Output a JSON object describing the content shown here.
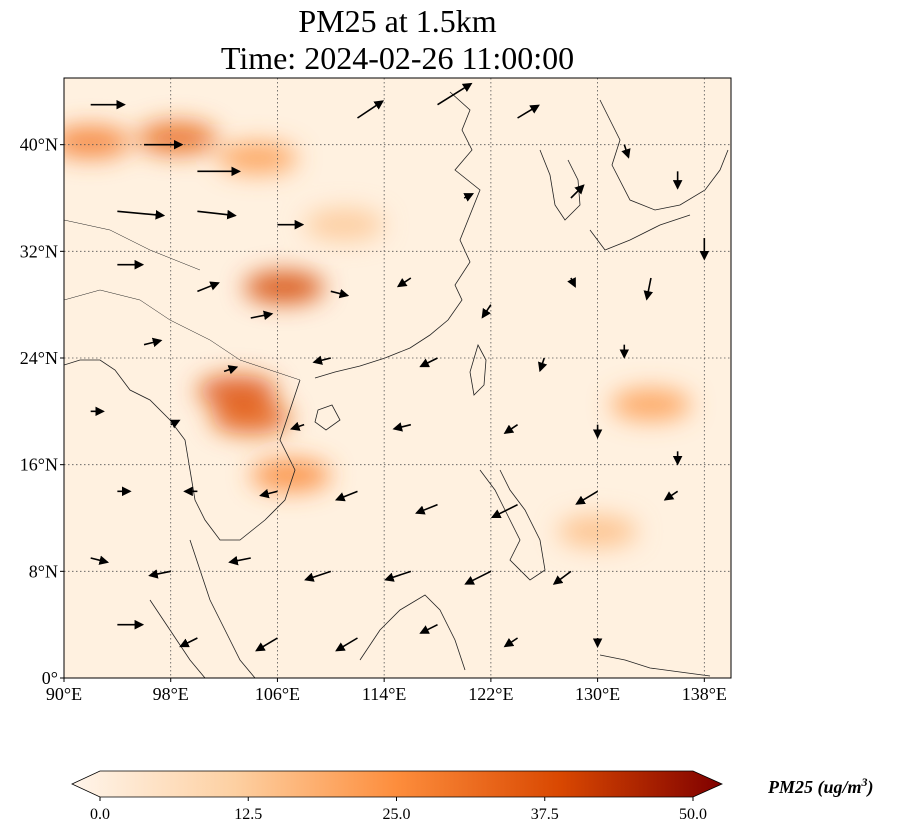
{
  "figure": {
    "title_line1": "PM25 at 1.5km",
    "title_line2": "Time: 2024-02-26 11:00:00"
  },
  "map": {
    "extent": {
      "lon_min": 90,
      "lon_max": 140,
      "lat_min": 0,
      "lat_max": 45
    },
    "x_ticks": [
      {
        "value": 90,
        "label": "90°E"
      },
      {
        "value": 98,
        "label": "98°E"
      },
      {
        "value": 106,
        "label": "106°E"
      },
      {
        "value": 114,
        "label": "114°E"
      },
      {
        "value": 122,
        "label": "122°E"
      },
      {
        "value": 130,
        "label": "130°E"
      },
      {
        "value": 138,
        "label": "138°E"
      }
    ],
    "y_ticks": [
      {
        "value": 0,
        "label": "0°"
      },
      {
        "value": 8,
        "label": "8°N"
      },
      {
        "value": 16,
        "label": "16°N"
      },
      {
        "value": 24,
        "label": "24°N"
      },
      {
        "value": 32,
        "label": "32°N"
      },
      {
        "value": 40,
        "label": "40°N"
      }
    ],
    "gridlines": true,
    "coastlines": true
  },
  "colorbar": {
    "title": "PM25 (ug/m",
    "title_superscript": "3",
    "title_close": ")",
    "vmin": 0.0,
    "vmax": 50.0,
    "extend": "both",
    "ticks": [
      {
        "value": 0.0,
        "label": "0.0"
      },
      {
        "value": 12.5,
        "label": "12.5"
      },
      {
        "value": 25.0,
        "label": "25.0"
      },
      {
        "value": 37.5,
        "label": "37.5"
      },
      {
        "value": 50.0,
        "label": "50.0"
      }
    ],
    "colors": [
      "#fff5eb",
      "#fdd0a2",
      "#fd8d3c",
      "#d94801",
      "#7f0000"
    ]
  },
  "pm25_hotspots": [
    {
      "lon": 98.5,
      "lat": 40.5,
      "value": 32
    },
    {
      "lon": 92.0,
      "lat": 40.2,
      "value": 28
    },
    {
      "lon": 104.5,
      "lat": 39.0,
      "value": 22
    },
    {
      "lon": 106.5,
      "lat": 29.3,
      "value": 38
    },
    {
      "lon": 103.0,
      "lat": 21.5,
      "value": 36
    },
    {
      "lon": 104.0,
      "lat": 19.5,
      "value": 34
    },
    {
      "lon": 107.0,
      "lat": 15.2,
      "value": 26
    },
    {
      "lon": 134.0,
      "lat": 20.5,
      "value": 22
    },
    {
      "lon": 130.0,
      "lat": 11.0,
      "value": 16
    },
    {
      "lon": 111.0,
      "lat": 34.0,
      "value": 14
    }
  ],
  "wind_vectors": [
    {
      "lon": 92,
      "lat": 43,
      "u": 8,
      "v": 0
    },
    {
      "lon": 96,
      "lat": 40,
      "u": 9,
      "v": 0
    },
    {
      "lon": 100,
      "lat": 38,
      "u": 10,
      "v": 0
    },
    {
      "lon": 94,
      "lat": 35,
      "u": 11,
      "v": -1
    },
    {
      "lon": 100,
      "lat": 35,
      "u": 9,
      "v": -1
    },
    {
      "lon": 106,
      "lat": 34,
      "u": 6,
      "v": 0
    },
    {
      "lon": 112,
      "lat": 42,
      "u": 6,
      "v": 4
    },
    {
      "lon": 118,
      "lat": 43,
      "u": 8,
      "v": 5
    },
    {
      "lon": 124,
      "lat": 42,
      "u": 5,
      "v": 3
    },
    {
      "lon": 132,
      "lat": 40,
      "u": 1,
      "v": -3
    },
    {
      "lon": 136,
      "lat": 38,
      "u": 0,
      "v": -4
    },
    {
      "lon": 138,
      "lat": 33,
      "u": 0,
      "v": -5
    },
    {
      "lon": 134,
      "lat": 30,
      "u": -1,
      "v": -5
    },
    {
      "lon": 128,
      "lat": 36,
      "u": 3,
      "v": 3
    },
    {
      "lon": 120,
      "lat": 36,
      "u": 2,
      "v": 1
    },
    {
      "lon": 94,
      "lat": 31,
      "u": 6,
      "v": 0
    },
    {
      "lon": 100,
      "lat": 29,
      "u": 5,
      "v": 2
    },
    {
      "lon": 104,
      "lat": 27,
      "u": 5,
      "v": 1
    },
    {
      "lon": 110,
      "lat": 29,
      "u": 4,
      "v": -1
    },
    {
      "lon": 116,
      "lat": 30,
      "u": -3,
      "v": -2
    },
    {
      "lon": 122,
      "lat": 28,
      "u": -2,
      "v": -3
    },
    {
      "lon": 128,
      "lat": 30,
      "u": 1,
      "v": -2
    },
    {
      "lon": 96,
      "lat": 25,
      "u": 4,
      "v": 1
    },
    {
      "lon": 102,
      "lat": 23,
      "u": 3,
      "v": 1
    },
    {
      "lon": 110,
      "lat": 24,
      "u": -4,
      "v": -1
    },
    {
      "lon": 118,
      "lat": 24,
      "u": -4,
      "v": -2
    },
    {
      "lon": 126,
      "lat": 24,
      "u": -1,
      "v": -3
    },
    {
      "lon": 132,
      "lat": 25,
      "u": 0,
      "v": -3
    },
    {
      "lon": 92,
      "lat": 20,
      "u": 3,
      "v": 0
    },
    {
      "lon": 98,
      "lat": 19,
      "u": 2,
      "v": 1
    },
    {
      "lon": 108,
      "lat": 19,
      "u": -3,
      "v": -1
    },
    {
      "lon": 116,
      "lat": 19,
      "u": -4,
      "v": -1
    },
    {
      "lon": 124,
      "lat": 19,
      "u": -3,
      "v": -2
    },
    {
      "lon": 130,
      "lat": 19,
      "u": 0,
      "v": -3
    },
    {
      "lon": 136,
      "lat": 17,
      "u": 0,
      "v": -3
    },
    {
      "lon": 94,
      "lat": 14,
      "u": 3,
      "v": 0
    },
    {
      "lon": 100,
      "lat": 14,
      "u": -3,
      "v": 0
    },
    {
      "lon": 106,
      "lat": 14,
      "u": -4,
      "v": -1
    },
    {
      "lon": 112,
      "lat": 14,
      "u": -5,
      "v": -2
    },
    {
      "lon": 118,
      "lat": 13,
      "u": -5,
      "v": -2
    },
    {
      "lon": 124,
      "lat": 13,
      "u": -6,
      "v": -3
    },
    {
      "lon": 130,
      "lat": 14,
      "u": -5,
      "v": -3
    },
    {
      "lon": 136,
      "lat": 14,
      "u": -3,
      "v": -2
    },
    {
      "lon": 92,
      "lat": 9,
      "u": 4,
      "v": -1
    },
    {
      "lon": 98,
      "lat": 8,
      "u": -5,
      "v": -1
    },
    {
      "lon": 104,
      "lat": 9,
      "u": -5,
      "v": -1
    },
    {
      "lon": 110,
      "lat": 8,
      "u": -6,
      "v": -2
    },
    {
      "lon": 116,
      "lat": 8,
      "u": -6,
      "v": -2
    },
    {
      "lon": 122,
      "lat": 8,
      "u": -6,
      "v": -3
    },
    {
      "lon": 128,
      "lat": 8,
      "u": -4,
      "v": -3
    },
    {
      "lon": 94,
      "lat": 4,
      "u": 6,
      "v": 0
    },
    {
      "lon": 100,
      "lat": 3,
      "u": -4,
      "v": -2
    },
    {
      "lon": 106,
      "lat": 3,
      "u": -5,
      "v": -3
    },
    {
      "lon": 112,
      "lat": 3,
      "u": -5,
      "v": -3
    },
    {
      "lon": 118,
      "lat": 4,
      "u": -4,
      "v": -2
    },
    {
      "lon": 124,
      "lat": 3,
      "u": -3,
      "v": -2
    },
    {
      "lon": 130,
      "lat": 3,
      "u": 0,
      "v": -2
    }
  ]
}
